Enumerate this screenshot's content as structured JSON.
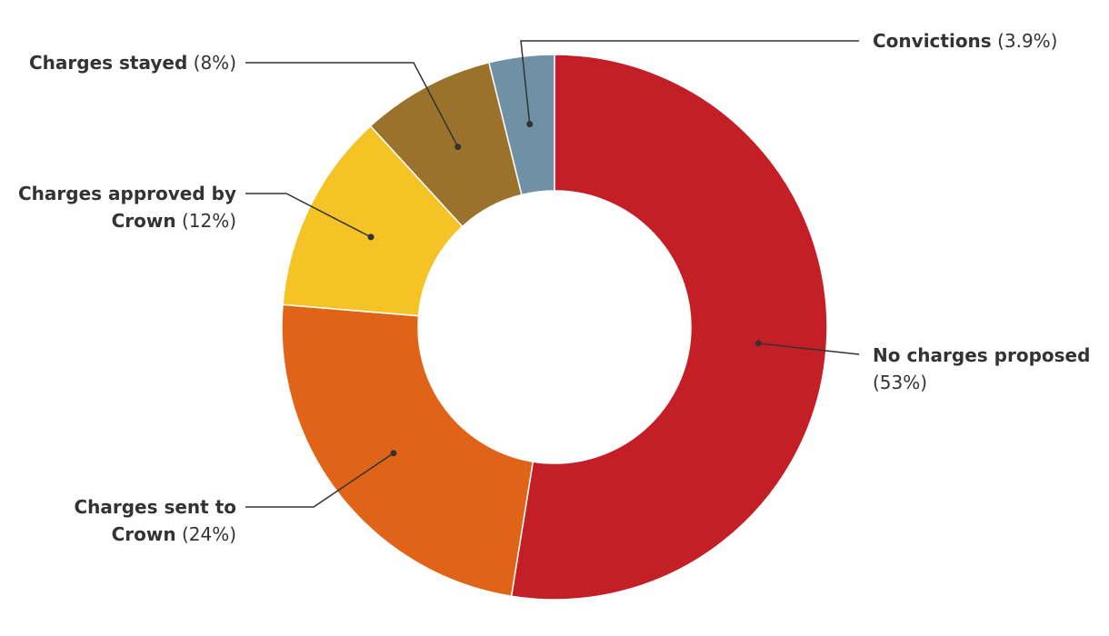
{
  "chart_data": {
    "type": "donut",
    "categories": [
      "No charges proposed",
      "Charges sent to Crown",
      "Charges approved by Crown",
      "Charges stayed",
      "Convictions"
    ],
    "values": [
      53,
      24,
      12,
      8,
      3.9
    ],
    "value_labels": [
      "(53%)",
      "(24%)",
      "(12%)",
      "(8%)",
      "(3.9%)"
    ],
    "colors": [
      "#c41f26",
      "#e06418",
      "#f5c325",
      "#9b722c",
      "#7090a6"
    ]
  }
}
